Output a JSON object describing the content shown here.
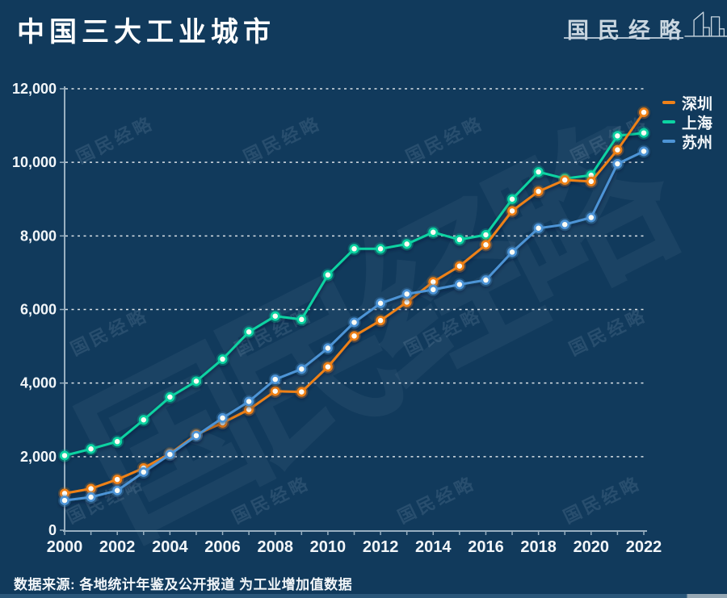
{
  "header": {
    "title": "中国三大工业城市",
    "brand": {
      "name": "国民经略"
    }
  },
  "watermark": {
    "text": "国民经略"
  },
  "footer": {
    "source": "数据来源: 各地统计年鉴及公开报道  为工业增加值数据"
  },
  "colors": {
    "background": "#113A5C",
    "shenzhen_orange": "#EF8118",
    "shanghai_teal": "#0CD3A2",
    "suzhou_blue": "#4D94D6",
    "axis": "#A7BCCB",
    "grid": "#FFFFFF",
    "label_text": "#F2F6F9",
    "brand_light": "#C9D6E0",
    "marker_fill": "#FDFCF5"
  },
  "chart_data": {
    "type": "line",
    "title": "中国三大工业城市",
    "x": [
      2000,
      2001,
      2002,
      2003,
      2004,
      2005,
      2006,
      2007,
      2008,
      2009,
      2010,
      2011,
      2012,
      2013,
      2014,
      2015,
      2016,
      2017,
      2018,
      2019,
      2020,
      2021,
      2022
    ],
    "x_tick_labels": [
      "2000",
      "2002",
      "2004",
      "2006",
      "2008",
      "2010",
      "2012",
      "2014",
      "2016",
      "2018",
      "2020",
      "2022"
    ],
    "ylim": [
      0,
      12000
    ],
    "y_ticks": [
      0,
      2000,
      4000,
      6000,
      8000,
      10000,
      12000
    ],
    "y_tick_labels": [
      "0",
      "2,000",
      "4,000",
      "6,000",
      "8,000",
      "10,000",
      "12,000"
    ],
    "grid": "horizontal-dashed",
    "legend_position": "top-right",
    "series": [
      {
        "name": "深圳",
        "color": "#EF8118",
        "values": [
          1000,
          1130,
          1380,
          1690,
          2080,
          2600,
          2920,
          3280,
          3780,
          3760,
          4440,
          5280,
          5700,
          6200,
          6750,
          7180,
          7760,
          8680,
          9210,
          9520,
          9480,
          10340,
          11360
        ]
      },
      {
        "name": "上海",
        "color": "#0CD3A2",
        "values": [
          2030,
          2210,
          2410,
          3000,
          3620,
          4050,
          4650,
          5390,
          5820,
          5730,
          6940,
          7650,
          7650,
          7780,
          8100,
          7900,
          8030,
          9000,
          9740,
          9560,
          9650,
          10720,
          10800
        ]
      },
      {
        "name": "苏州",
        "color": "#4D94D6",
        "values": [
          810,
          900,
          1080,
          1580,
          2060,
          2570,
          3050,
          3500,
          4100,
          4380,
          4950,
          5650,
          6170,
          6420,
          6540,
          6680,
          6800,
          7560,
          8210,
          8310,
          8500,
          9960,
          10300
        ]
      }
    ],
    "draw_order": [
      1,
      0,
      2
    ]
  }
}
